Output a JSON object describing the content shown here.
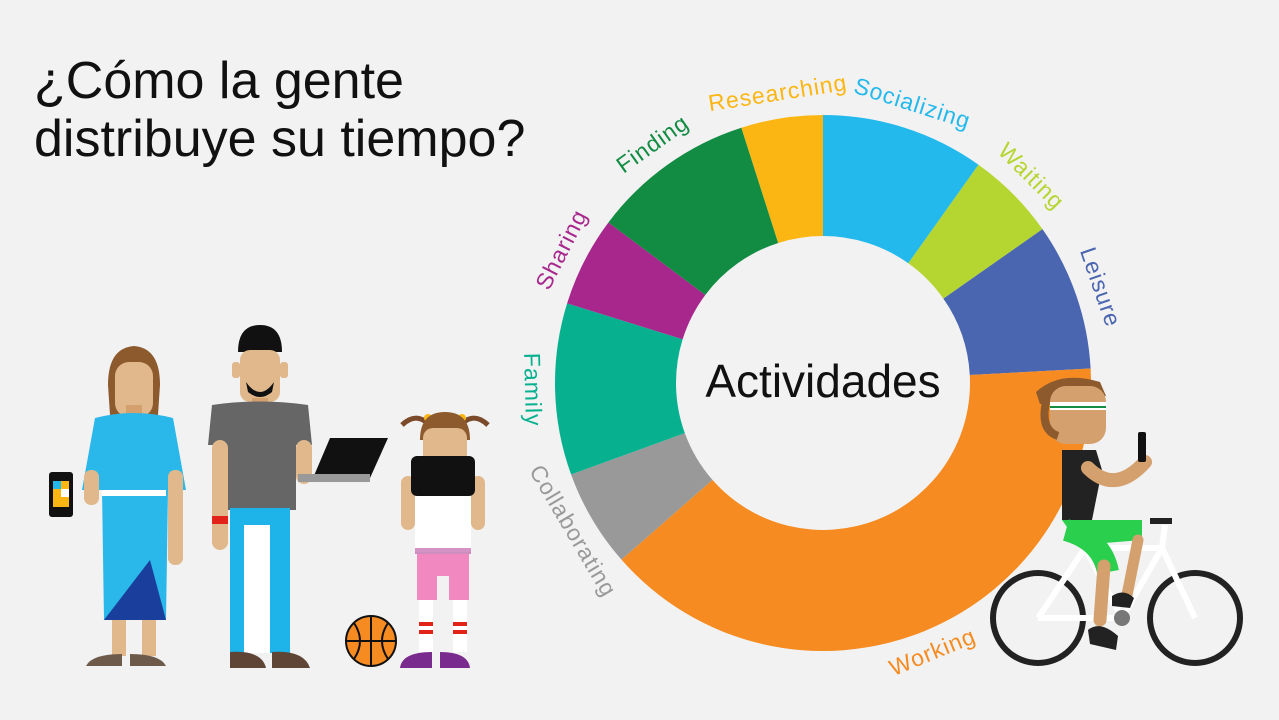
{
  "slide": {
    "title_lines": [
      "¿Cómo la gente",
      "distribuye su tiempo?"
    ]
  },
  "chart_data": {
    "type": "pie",
    "variant": "donut",
    "center_label": "Actividades",
    "categories": [
      "Socializing",
      "Waiting",
      "Leisure",
      "Working",
      "Collaborating",
      "Family",
      "Sharing",
      "Finding",
      "Researching"
    ],
    "values": [
      10,
      5.5,
      9,
      40,
      6,
      10.5,
      5.5,
      10,
      5
    ],
    "colors": [
      "#24b9ec",
      "#b5d531",
      "#4a66b0",
      "#f58b21",
      "#999999",
      "#07b190",
      "#a7278c",
      "#128c43",
      "#fbb614"
    ],
    "label_colors": [
      "#24b9ec",
      "#b5d531",
      "#4a66b0",
      "#f58b21",
      "#999999",
      "#07b190",
      "#a7278c",
      "#128c43",
      "#fbb614"
    ]
  },
  "illustration": {
    "people": [
      "woman-with-phone",
      "man-with-laptop",
      "girl-with-tablet",
      "cyclist-with-phone"
    ],
    "objects": [
      "basketball",
      "bicycle"
    ]
  }
}
